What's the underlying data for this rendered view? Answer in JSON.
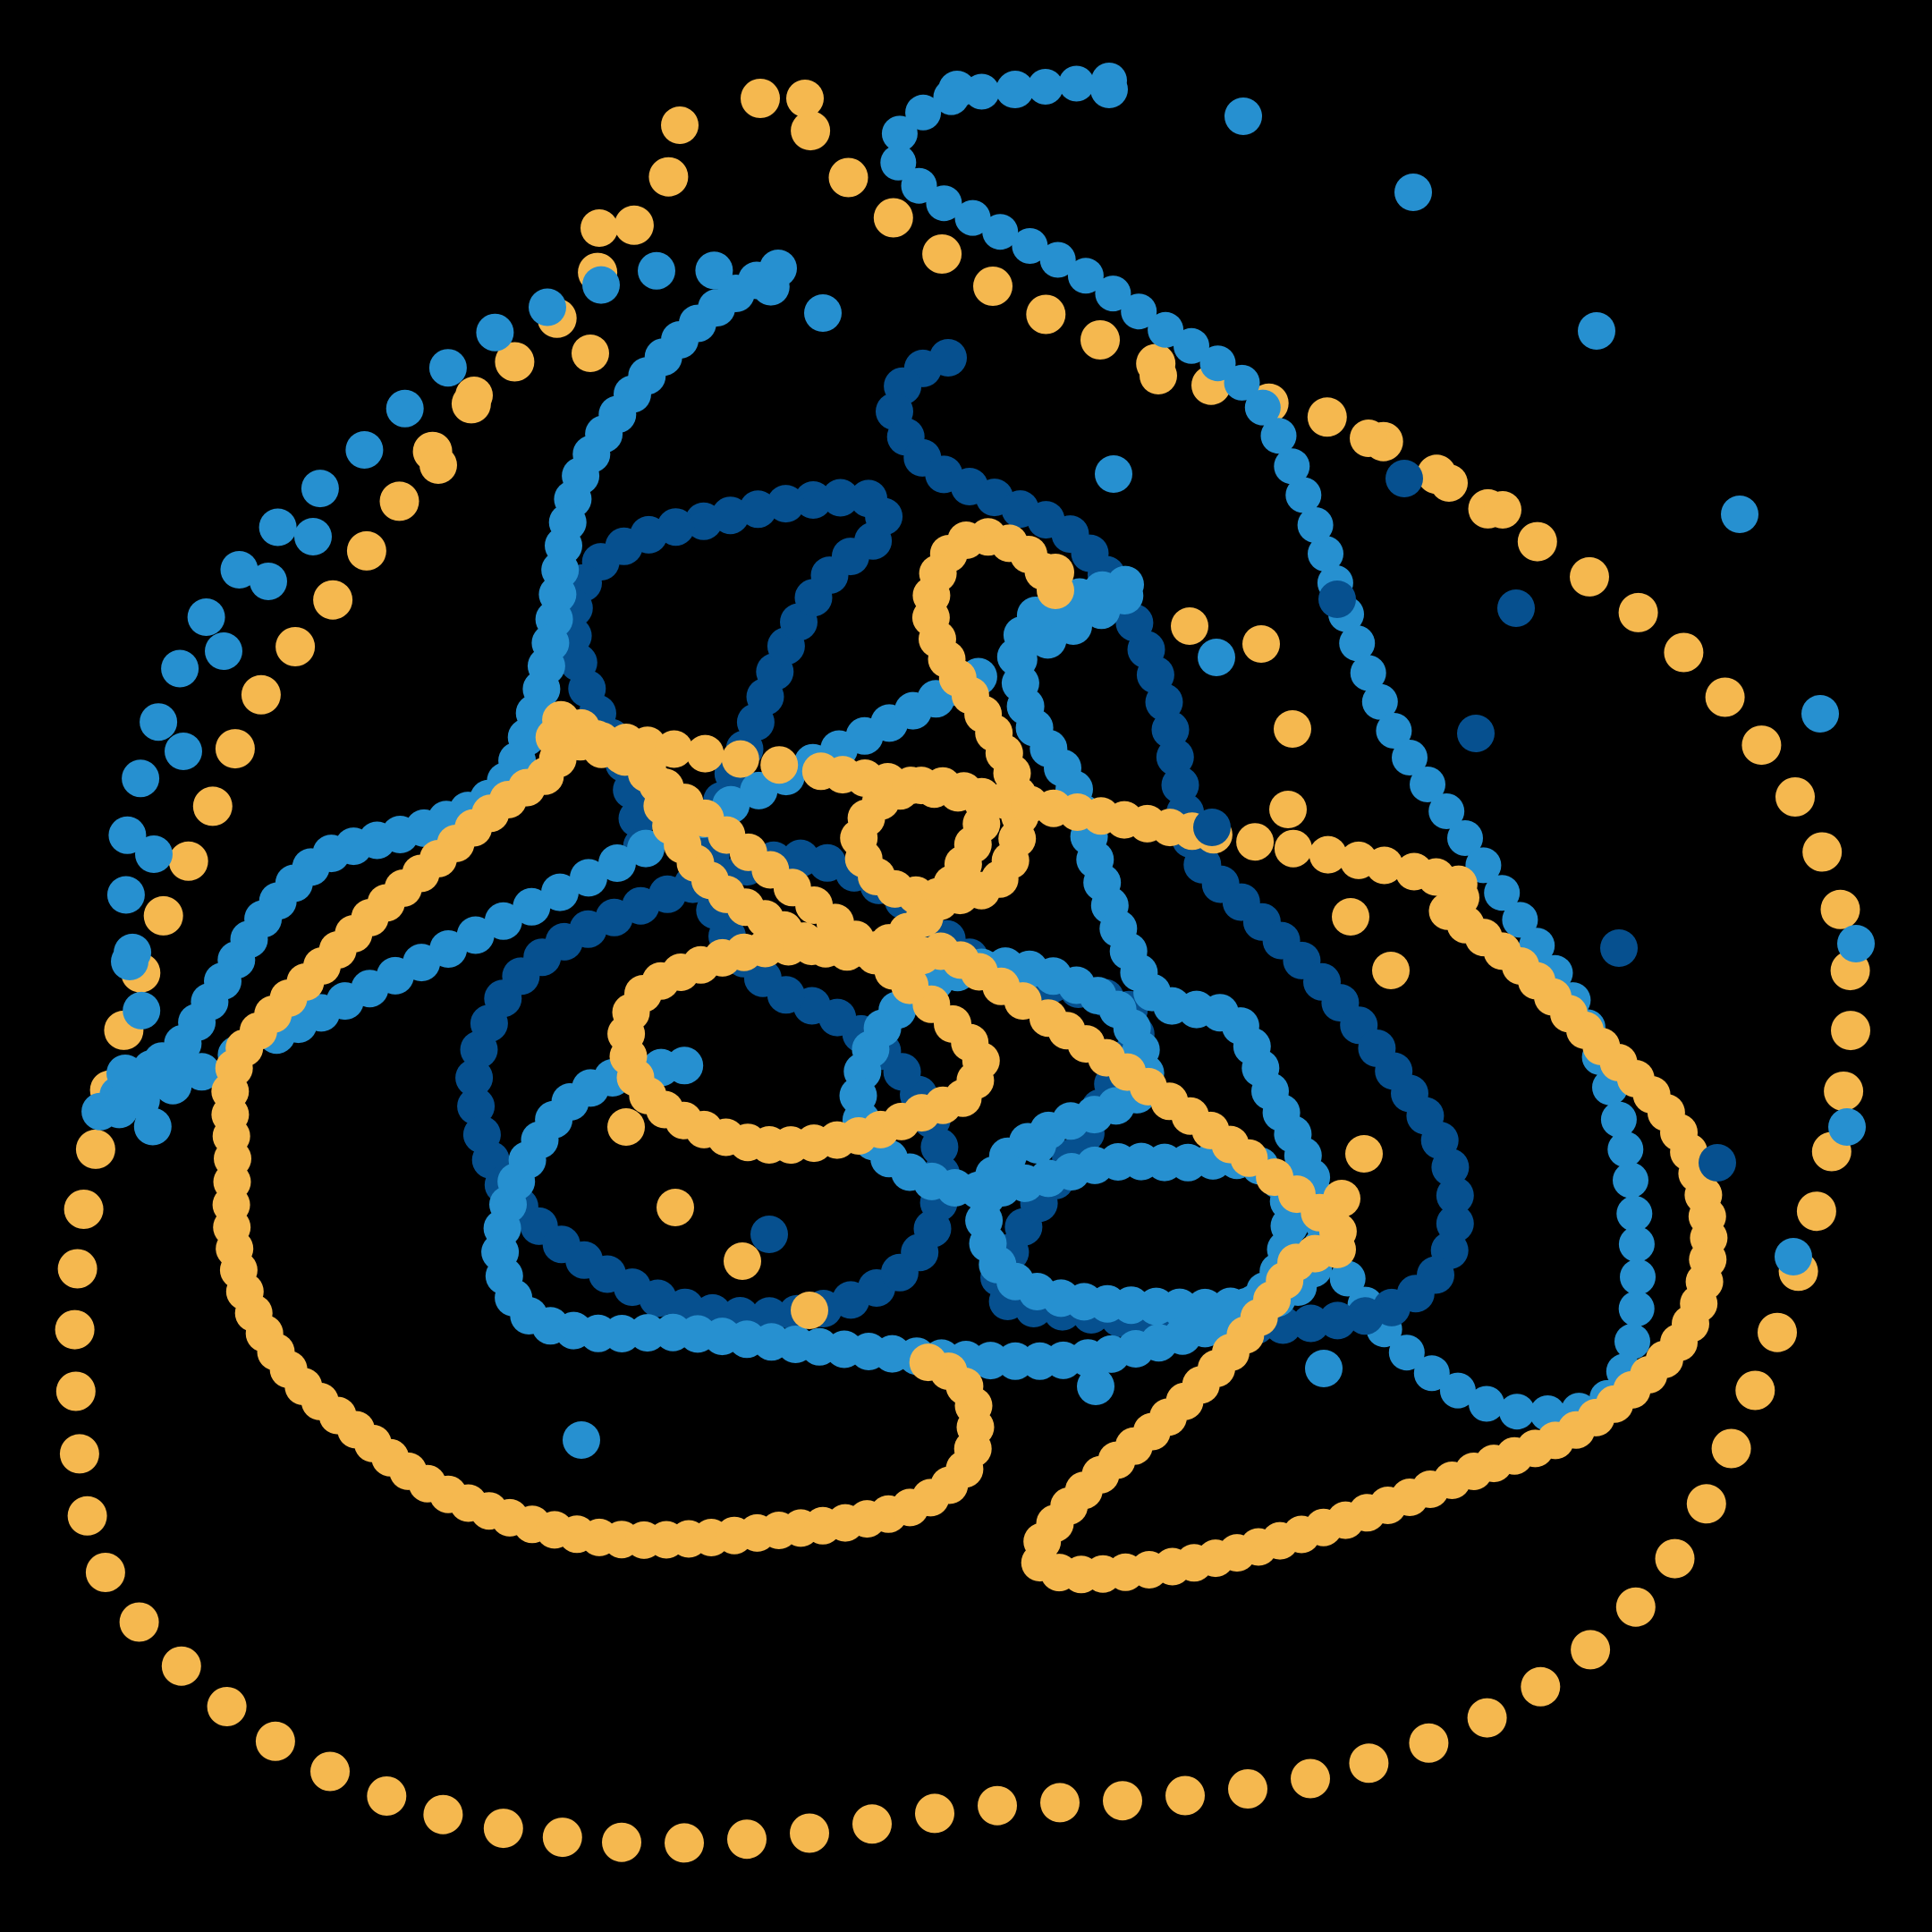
{
  "artwork": {
    "description_kind": "generative dotted-curve artwork",
    "background_color": "#000000",
    "palette": {
      "gold": "#F5B84F",
      "sky_blue": "#2690D0",
      "navy": "#06508F"
    },
    "strands": [
      {
        "name": "outer-gold-spiral",
        "color": "gold",
        "style": "sparse-dots"
      },
      {
        "name": "outer-blue-spiral",
        "color": "sky_blue",
        "style": "sparse-dots"
      },
      {
        "name": "inner-gold-loop",
        "color": "gold",
        "style": "dense-dots"
      },
      {
        "name": "inner-blue-loop",
        "color": "sky_blue",
        "style": "dense-dots"
      },
      {
        "name": "inner-navy-loop",
        "color": "navy",
        "style": "dense-dots"
      }
    ]
  }
}
